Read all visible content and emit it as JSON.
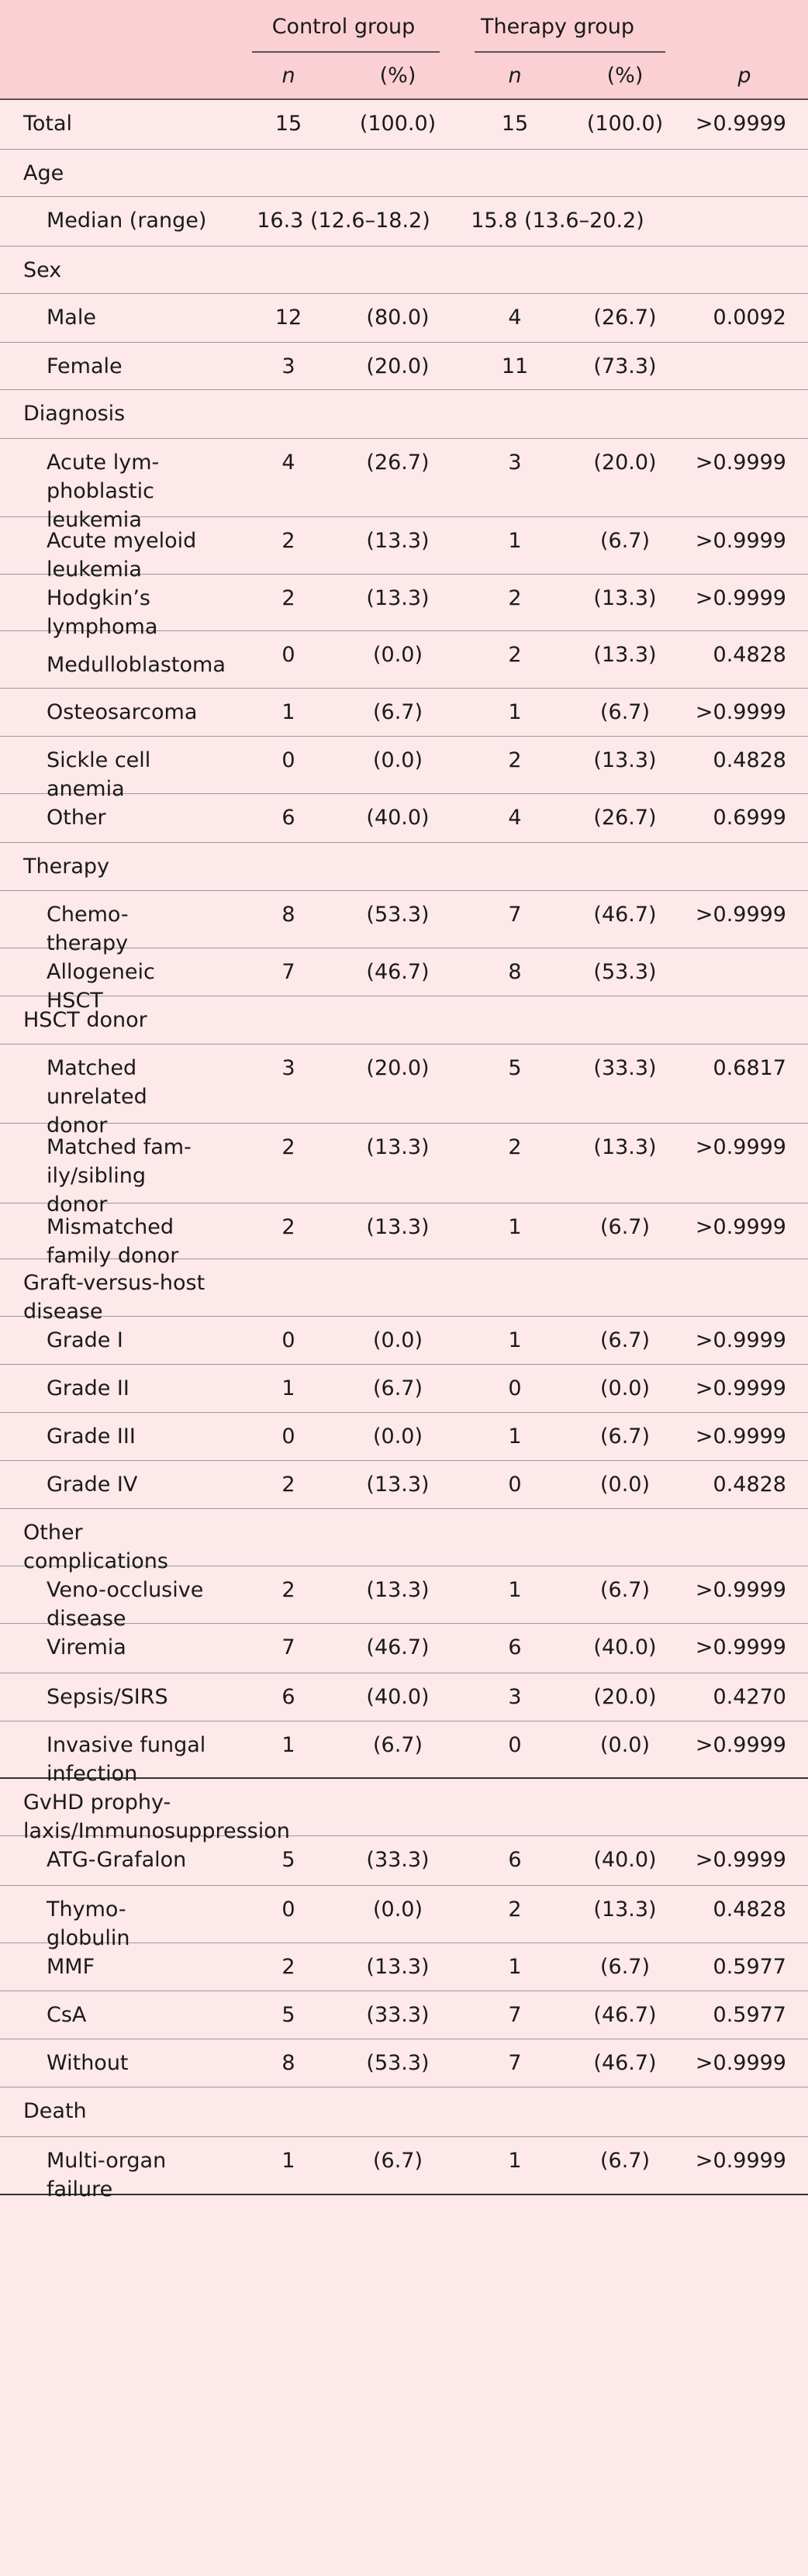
{
  "header": {
    "control_group": "Control group",
    "therapy_group": "Therapy group",
    "n": "n",
    "pct": "(%)",
    "p": "p"
  },
  "rows": [
    {
      "type": "data",
      "label": "Total",
      "cn": "15",
      "cp": "(100.0)",
      "tn": "15",
      "tp": "(100.0)",
      "p": ">0.9999"
    },
    {
      "type": "section",
      "label": "Age"
    },
    {
      "type": "median",
      "label": "Median (range)",
      "c": "16.3 (12.6–18.2)",
      "t": "15.8 (13.6–20.2)"
    },
    {
      "type": "section",
      "label": "Sex"
    },
    {
      "type": "data",
      "label": "Male",
      "cn": "12",
      "cp": "(80.0)",
      "tn": "4",
      "tp": "(26.7)",
      "p": "0.0092"
    },
    {
      "type": "data",
      "label": "Female",
      "cn": "3",
      "cp": "(20.0)",
      "tn": "11",
      "tp": "(73.3)",
      "p": ""
    },
    {
      "type": "section",
      "label": "Diagnosis"
    },
    {
      "type": "data",
      "label": "Acute lym-\nphoblastic\nleukemia",
      "cn": "4",
      "cp": "(26.7)",
      "tn": "3",
      "tp": "(20.0)",
      "p": ">0.9999"
    },
    {
      "type": "data",
      "label": "Acute myeloid\nleukemia",
      "cn": "2",
      "cp": "(13.3)",
      "tn": "1",
      "tp": "(6.7)",
      "p": ">0.9999"
    },
    {
      "type": "data",
      "label": "Hodgkin’s\nlymphoma",
      "cn": "2",
      "cp": "(13.3)",
      "tn": "2",
      "tp": "(13.3)",
      "p": ">0.9999"
    },
    {
      "type": "data",
      "label": "Medulloblastoma",
      "cn": "0",
      "cp": "(0.0)",
      "tn": "2",
      "tp": "(13.3)",
      "p": "0.4828"
    },
    {
      "type": "data",
      "label": "Osteosarcoma",
      "cn": "1",
      "cp": "(6.7)",
      "tn": "1",
      "tp": "(6.7)",
      "p": ">0.9999"
    },
    {
      "type": "data",
      "label": "Sickle cell\nanemia",
      "cn": "0",
      "cp": "(0.0)",
      "tn": "2",
      "tp": "(13.3)",
      "p": "0.4828"
    },
    {
      "type": "data",
      "label": "Other",
      "cn": "6",
      "cp": "(40.0)",
      "tn": "4",
      "tp": "(26.7)",
      "p": "0.6999"
    },
    {
      "type": "section",
      "label": "Therapy"
    },
    {
      "type": "data",
      "label": "Chemo-\ntherapy",
      "cn": "8",
      "cp": "(53.3)",
      "tn": "7",
      "tp": "(46.7)",
      "p": ">0.9999"
    },
    {
      "type": "data",
      "label": "Allogeneic\nHSCT",
      "cn": "7",
      "cp": "(46.7)",
      "tn": "8",
      "tp": "(53.3)",
      "p": ""
    },
    {
      "type": "section",
      "label": "HSCT donor"
    },
    {
      "type": "data",
      "label": "Matched\nunrelated\ndonor",
      "cn": "3",
      "cp": "(20.0)",
      "tn": "5",
      "tp": "(33.3)",
      "p": "0.6817"
    },
    {
      "type": "data",
      "label": "Matched fam-\nily/sibling\ndonor",
      "cn": "2",
      "cp": "(13.3)",
      "tn": "2",
      "tp": "(13.3)",
      "p": ">0.9999"
    },
    {
      "type": "data",
      "label": "Mismatched\nfamily donor",
      "cn": "2",
      "cp": "(13.3)",
      "tn": "1",
      "tp": "(6.7)",
      "p": ">0.9999"
    },
    {
      "type": "section",
      "label": "Graft-versus-host\ndisease"
    },
    {
      "type": "data",
      "label": "Grade I",
      "cn": "0",
      "cp": "(0.0)",
      "tn": "1",
      "tp": "(6.7)",
      "p": ">0.9999"
    },
    {
      "type": "data",
      "label": "Grade II",
      "cn": "1",
      "cp": "(6.7)",
      "tn": "0",
      "tp": "(0.0)",
      "p": ">0.9999"
    },
    {
      "type": "data",
      "label": "Grade III",
      "cn": "0",
      "cp": "(0.0)",
      "tn": "1",
      "tp": "(6.7)",
      "p": ">0.9999"
    },
    {
      "type": "data",
      "label": "Grade IV",
      "cn": "2",
      "cp": "(13.3)",
      "tn": "0",
      "tp": "(0.0)",
      "p": "0.4828"
    },
    {
      "type": "section",
      "label": "Other\ncomplications"
    },
    {
      "type": "data",
      "label": "Veno-occlusive\ndisease",
      "cn": "2",
      "cp": "(13.3)",
      "tn": "1",
      "tp": "(6.7)",
      "p": ">0.9999"
    },
    {
      "type": "data",
      "label": "Viremia",
      "cn": "7",
      "cp": "(46.7)",
      "tn": "6",
      "tp": "(40.0)",
      "p": ">0.9999"
    },
    {
      "type": "data",
      "label": "Sepsis/SIRS",
      "cn": "6",
      "cp": "(40.0)",
      "tn": "3",
      "tp": "(20.0)",
      "p": "0.4270"
    },
    {
      "type": "data",
      "label": "Invasive fungal\ninfection",
      "cn": "1",
      "cp": "(6.7)",
      "tn": "0",
      "tp": "(0.0)",
      "p": ">0.9999"
    },
    {
      "type": "section",
      "label": "GvHD prophy-\nlaxis/Immunosuppression"
    },
    {
      "type": "data",
      "label": "ATG-Grafalon",
      "cn": "5",
      "cp": "(33.3)",
      "tn": "6",
      "tp": "(40.0)",
      "p": ">0.9999"
    },
    {
      "type": "data",
      "label": "Thymo-\nglobulin",
      "cn": "0",
      "cp": "(0.0)",
      "tn": "2",
      "tp": "(13.3)",
      "p": "0.4828"
    },
    {
      "type": "data",
      "label": "MMF",
      "cn": "2",
      "cp": "(13.3)",
      "tn": "1",
      "tp": "(6.7)",
      "p": "0.5977"
    },
    {
      "type": "data",
      "label": "CsA",
      "cn": "5",
      "cp": "(33.3)",
      "tn": "7",
      "tp": "(46.7)",
      "p": "0.5977"
    },
    {
      "type": "data",
      "label": "Without",
      "cn": "8",
      "cp": "(53.3)",
      "tn": "7",
      "tp": "(46.7)",
      "p": ">0.9999"
    },
    {
      "type": "section",
      "label": "Death"
    },
    {
      "type": "data",
      "label": "Multi-organ\nfailure",
      "cn": "1",
      "cp": "(6.7)",
      "tn": "1",
      "tp": "(6.7)",
      "p": ">0.9999"
    }
  ]
}
